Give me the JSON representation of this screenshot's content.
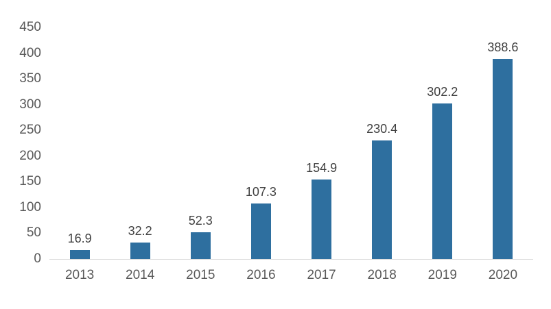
{
  "chart_data": {
    "type": "bar",
    "title": "",
    "xlabel": "",
    "ylabel": "",
    "categories": [
      "2013",
      "2014",
      "2015",
      "2016",
      "2017",
      "2018",
      "2019",
      "2020"
    ],
    "values": [
      16.9,
      32.2,
      52.3,
      107.3,
      154.9,
      230.4,
      302.2,
      388.6
    ],
    "data_labels": [
      "16.9",
      "32.2",
      "52.3",
      "107.3",
      "154.9",
      "230.4",
      "302.2",
      "388.6"
    ],
    "ylim": [
      0,
      450
    ],
    "ytick_step": 50,
    "ytick_labels": [
      "0",
      "50",
      "100",
      "150",
      "200",
      "250",
      "300",
      "350",
      "400",
      "450"
    ],
    "grid": false,
    "legend": false,
    "bar_color": "#2E6F9F",
    "axis_line_color": "#D9D9D9",
    "tick_label_color": "#595959",
    "data_label_color": "#404040",
    "background": "#FFFFFF"
  }
}
